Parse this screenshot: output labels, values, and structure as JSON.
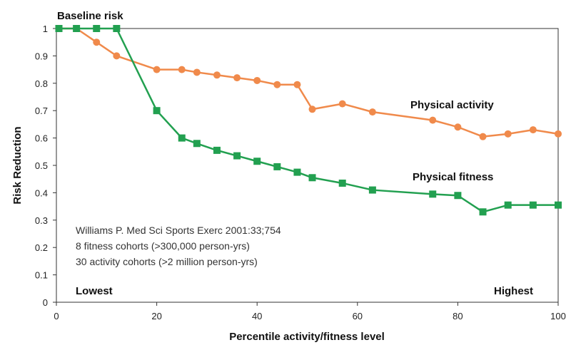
{
  "chart_data": {
    "type": "line",
    "title": "",
    "xlabel": "Percentile activity/fitness level",
    "ylabel": "Risk Reduction",
    "xlim": [
      0,
      100
    ],
    "ylim": [
      0,
      1
    ],
    "x_ticks": [
      0,
      20,
      40,
      60,
      80,
      100
    ],
    "y_ticks": [
      0,
      0.1,
      0.2,
      0.3,
      0.4,
      0.5,
      0.6,
      0.7,
      0.8,
      0.9,
      1
    ],
    "grid": false,
    "series": [
      {
        "name": "Physical activity",
        "color": "#f08a4b",
        "marker": "circle",
        "x": [
          0.5,
          4,
          8,
          12,
          20,
          25,
          28,
          32,
          36,
          40,
          44,
          48,
          51,
          57,
          63,
          75,
          80,
          85,
          90,
          95,
          100
        ],
        "y": [
          1.0,
          1.0,
          0.95,
          0.9,
          0.85,
          0.85,
          0.84,
          0.83,
          0.82,
          0.81,
          0.795,
          0.795,
          0.705,
          0.725,
          0.695,
          0.665,
          0.64,
          0.605,
          0.615,
          0.63,
          0.615
        ]
      },
      {
        "name": "Physical fitness",
        "color": "#22a050",
        "marker": "square",
        "x": [
          0.5,
          4,
          8,
          12,
          20,
          25,
          28,
          32,
          36,
          40,
          44,
          48,
          51,
          57,
          63,
          75,
          80,
          85,
          90,
          95,
          100
        ],
        "y": [
          1.0,
          1.0,
          1.0,
          1.0,
          0.7,
          0.6,
          0.58,
          0.555,
          0.535,
          0.515,
          0.495,
          0.475,
          0.455,
          0.435,
          0.41,
          0.395,
          0.39,
          0.33,
          0.355,
          0.355,
          0.355
        ]
      }
    ],
    "annotations": {
      "baseline": "Baseline risk",
      "lowest": "Lowest",
      "highest": "Highest",
      "source_lines": [
        "Williams P. Med Sci Sports Exerc 2001:33;754",
        "8 fitness cohorts (>300,000 person-yrs)",
        "30 activity cohorts (>2 million person-yrs)"
      ]
    }
  }
}
